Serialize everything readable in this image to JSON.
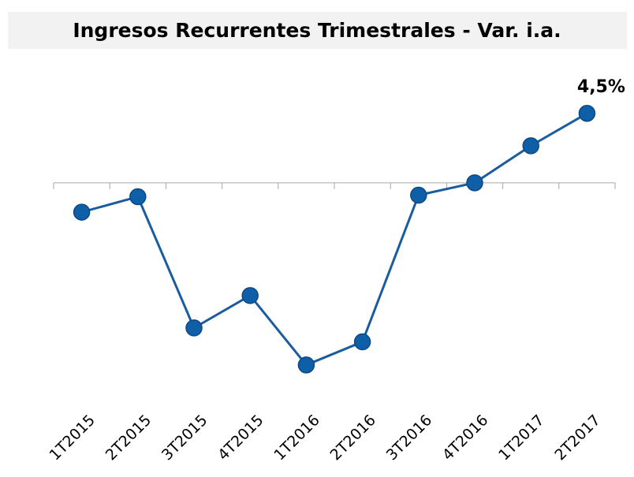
{
  "chart_data": {
    "type": "line",
    "title": "Ingresos Recurrentes Trimestrales - Var. i.a.",
    "categories": [
      "1T2015",
      "2T2015",
      "3T2015",
      "4T2015",
      "1T2016",
      "2T2016",
      "3T2016",
      "4T2016",
      "1T2017",
      "2T2017"
    ],
    "series": [
      {
        "name": "Ingresos Recurrentes Trimestrales - Var. i.a.",
        "color": "#1a5c9e",
        "values": [
          -1.9,
          -0.9,
          -9.4,
          -7.3,
          -11.8,
          -10.3,
          -0.8,
          0,
          2.4,
          4.5
        ],
        "value_labels": [
          null,
          null,
          null,
          null,
          null,
          null,
          null,
          null,
          null,
          "4,5%"
        ]
      }
    ],
    "ylim": [
      -14,
      6
    ]
  }
}
